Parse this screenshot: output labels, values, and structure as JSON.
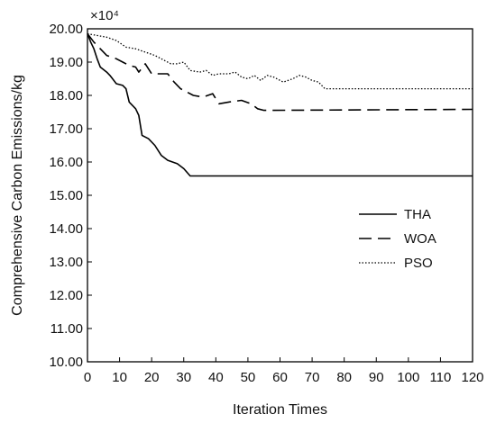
{
  "chart_data": {
    "type": "line",
    "title": "",
    "xlabel": "Iteration Times",
    "ylabel": "Comprehensive Carbon Emissions/kg",
    "y_multiplier_label": "×10⁴",
    "xlim": [
      0,
      120
    ],
    "ylim": [
      10.0,
      20.0
    ],
    "x_ticks": [
      "0",
      "10",
      "20",
      "30",
      "40",
      "50",
      "60",
      "70",
      "80",
      "90",
      "100",
      "110",
      "120"
    ],
    "y_ticks": [
      "10.00",
      "11.00",
      "12.00",
      "13.00",
      "14.00",
      "15.00",
      "16.00",
      "17.00",
      "18.00",
      "19.00",
      "20.00"
    ],
    "grid": false,
    "legend_position": "center-right",
    "series": [
      {
        "name": "THA",
        "style": "solid",
        "points": [
          [
            0,
            19.85
          ],
          [
            1,
            19.6
          ],
          [
            2,
            19.4
          ],
          [
            3,
            19.1
          ],
          [
            4,
            18.85
          ],
          [
            6,
            18.7
          ],
          [
            7,
            18.6
          ],
          [
            9,
            18.35
          ],
          [
            11,
            18.3
          ],
          [
            12,
            18.2
          ],
          [
            13,
            17.8
          ],
          [
            15,
            17.6
          ],
          [
            16,
            17.4
          ],
          [
            17,
            16.8
          ],
          [
            19,
            16.7
          ],
          [
            21,
            16.5
          ],
          [
            23,
            16.2
          ],
          [
            25,
            16.05
          ],
          [
            28,
            15.95
          ],
          [
            30,
            15.8
          ],
          [
            32,
            15.58
          ],
          [
            120,
            15.58
          ]
        ]
      },
      {
        "name": "WOA",
        "style": "dashed",
        "points": [
          [
            0,
            19.85
          ],
          [
            2,
            19.6
          ],
          [
            4,
            19.4
          ],
          [
            6,
            19.2
          ],
          [
            9,
            19.1
          ],
          [
            11,
            19.0
          ],
          [
            13,
            18.9
          ],
          [
            15,
            18.85
          ],
          [
            16,
            18.7
          ],
          [
            18,
            18.95
          ],
          [
            19,
            18.8
          ],
          [
            20,
            18.65
          ],
          [
            25,
            18.65
          ],
          [
            27,
            18.4
          ],
          [
            29,
            18.2
          ],
          [
            31,
            18.1
          ],
          [
            33,
            18.0
          ],
          [
            36,
            17.95
          ],
          [
            39,
            18.05
          ],
          [
            41,
            17.75
          ],
          [
            44,
            17.8
          ],
          [
            48,
            17.85
          ],
          [
            51,
            17.75
          ],
          [
            53,
            17.6
          ],
          [
            55,
            17.55
          ],
          [
            120,
            17.58
          ]
        ]
      },
      {
        "name": "PSO",
        "style": "dotted",
        "points": [
          [
            0,
            19.85
          ],
          [
            3,
            19.8
          ],
          [
            6,
            19.75
          ],
          [
            9,
            19.65
          ],
          [
            12,
            19.45
          ],
          [
            15,
            19.4
          ],
          [
            18,
            19.3
          ],
          [
            21,
            19.2
          ],
          [
            23,
            19.1
          ],
          [
            26,
            18.95
          ],
          [
            28,
            18.95
          ],
          [
            30,
            19.0
          ],
          [
            32,
            18.75
          ],
          [
            35,
            18.7
          ],
          [
            37,
            18.75
          ],
          [
            39,
            18.6
          ],
          [
            41,
            18.65
          ],
          [
            44,
            18.65
          ],
          [
            46,
            18.7
          ],
          [
            48,
            18.55
          ],
          [
            50,
            18.5
          ],
          [
            52,
            18.6
          ],
          [
            54,
            18.45
          ],
          [
            56,
            18.6
          ],
          [
            58,
            18.55
          ],
          [
            61,
            18.4
          ],
          [
            64,
            18.5
          ],
          [
            66,
            18.6
          ],
          [
            68,
            18.55
          ],
          [
            70,
            18.45
          ],
          [
            72,
            18.4
          ],
          [
            74,
            18.2
          ],
          [
            120,
            18.2
          ]
        ]
      }
    ]
  }
}
